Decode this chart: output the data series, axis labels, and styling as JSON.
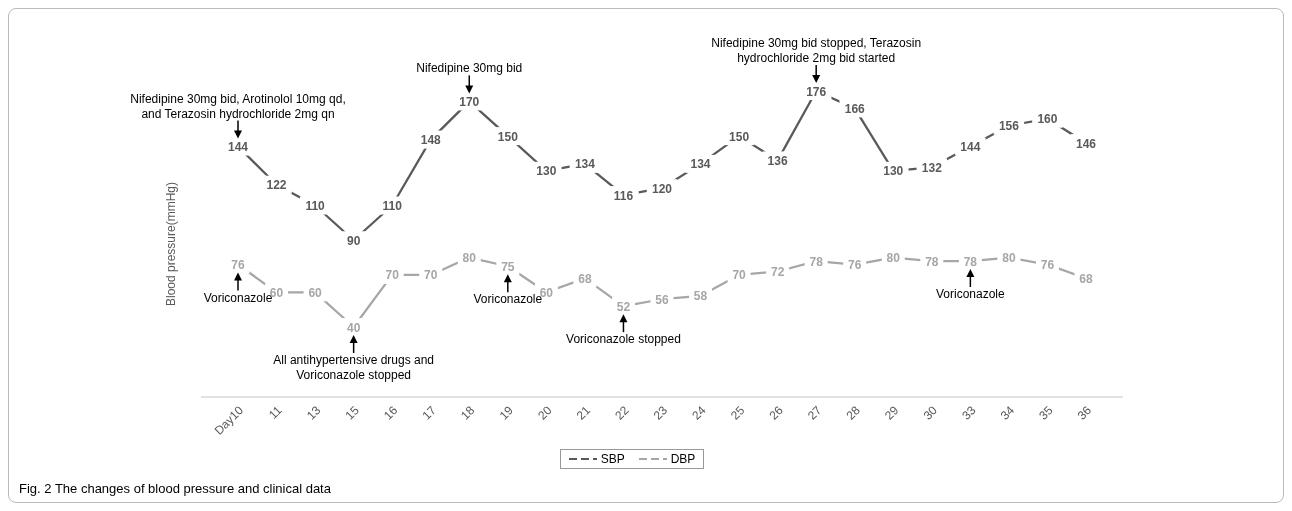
{
  "chart_data": {
    "type": "line",
    "ylabel": "Blood pressure(mmHg)",
    "categories": [
      "Day10",
      "11",
      "13",
      "15",
      "16",
      "17",
      "18",
      "19",
      "20",
      "21",
      "22",
      "23",
      "24",
      "25",
      "26",
      "27",
      "28",
      "29",
      "30",
      "33",
      "34",
      "35",
      "36"
    ],
    "series": [
      {
        "name": "SBP",
        "color": "#595959",
        "values": [
          144,
          122,
          110,
          90,
          110,
          148,
          170,
          150,
          130,
          134,
          116,
          120,
          134,
          150,
          136,
          176,
          166,
          130,
          132,
          144,
          156,
          160,
          146
        ]
      },
      {
        "name": "DBP",
        "color": "#a6a6a6",
        "values": [
          76,
          60,
          60,
          40,
          70,
          70,
          80,
          75,
          60,
          68,
          52,
          56,
          58,
          70,
          72,
          78,
          76,
          80,
          78,
          78,
          80,
          76,
          68
        ]
      }
    ],
    "data_labels": true,
    "grid": false,
    "legend": "bottom",
    "line_style": "solid",
    "annotations": [
      {
        "text": "Nifedipine 30mg bid, Arotinolol 10mg qd, and Terazosin hydrochloride 2mg qn",
        "x": "Day10",
        "y": 144
      },
      {
        "text": "Nifedipine 30mg bid",
        "x": "18",
        "y": 170
      },
      {
        "text": "Nifedipine 30mg bid stopped, Terazosin hydrochloride 2mg bid started",
        "x": "27",
        "y": 176
      },
      {
        "text": "Voriconazole",
        "x": "Day10",
        "y": 76
      },
      {
        "text": "All antihypertensive drugs and Voriconazole stopped",
        "x": "15",
        "y": 40
      },
      {
        "text": "Voriconazole",
        "x": "19",
        "y": 75
      },
      {
        "text": "Voriconazole stopped",
        "x": "22",
        "y": 52
      },
      {
        "text": "Voriconazole",
        "x": "33",
        "y": 78
      },
      "Fig. 2 The changes of blood pressure and clinical data"
    ]
  }
}
